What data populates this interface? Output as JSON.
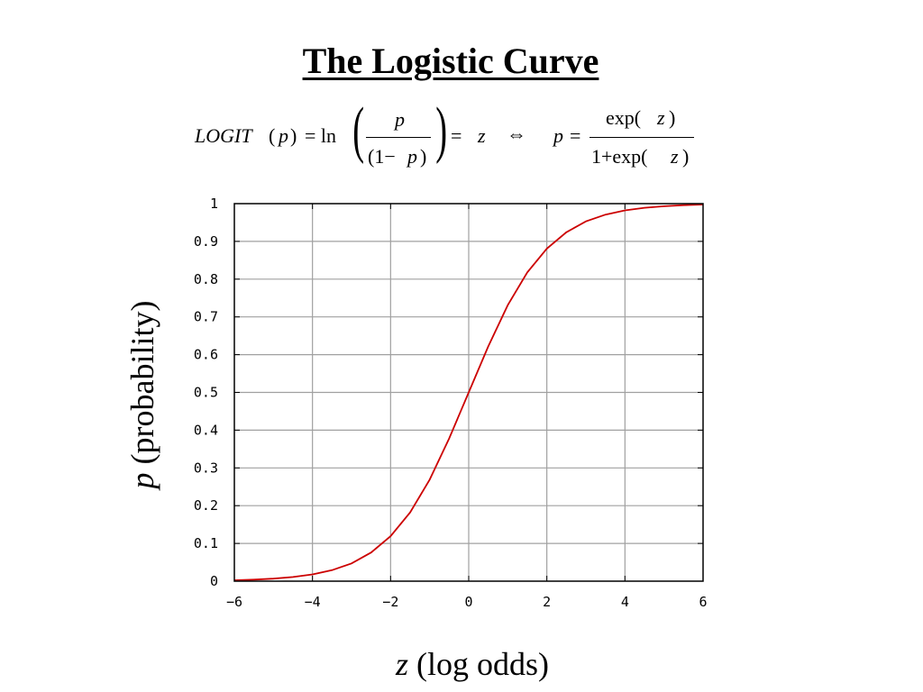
{
  "page": {
    "title": "The Logistic Curve"
  },
  "formula": {
    "lhs_func": "LOGIT",
    "lhs_arg_open": "(",
    "lhs_arg": "p",
    "lhs_arg_close": ")",
    "eq1": "= ln",
    "frac1_num": "p",
    "frac1_den_pre": "(1− ",
    "frac1_den_var": "p",
    "frac1_den_post": ")",
    "eq2": "=",
    "z": "z",
    "iff": "⇔",
    "p": "p",
    "eq3": "=",
    "frac2_num_pre": "exp(",
    "frac2_num_var": "z",
    "frac2_num_post": ")",
    "frac2_den_pre": "1+exp(",
    "frac2_den_var": "z",
    "frac2_den_post": ")"
  },
  "axes": {
    "ylabel_var": "p",
    "ylabel_rest": " (probability)",
    "xlabel_var": "z",
    "xlabel_rest": " (log odds)"
  },
  "colors": {
    "curve": "#cc0000",
    "grid": "#a0a0a0",
    "frame": "#000000"
  },
  "chart_data": {
    "type": "line",
    "title": "The Logistic Curve",
    "xlabel": "z (log odds)",
    "ylabel": "p (probability)",
    "xlim": [
      -6,
      6
    ],
    "ylim": [
      0,
      1
    ],
    "xticks": [
      -6,
      -4,
      -2,
      0,
      2,
      4,
      6
    ],
    "xtick_labels": [
      "−6",
      "−4",
      "−2",
      "0",
      "2",
      "4",
      "6"
    ],
    "yticks": [
      0,
      0.1,
      0.2,
      0.3,
      0.4,
      0.5,
      0.6,
      0.7,
      0.8,
      0.9,
      1
    ],
    "ytick_labels": [
      "0",
      "0.1",
      "0.2",
      "0.3",
      "0.4",
      "0.5",
      "0.6",
      "0.7",
      "0.8",
      "0.9",
      "1"
    ],
    "grid": true,
    "series": [
      {
        "x": [
          -6,
          -5.5,
          -5,
          -4.5,
          -4,
          -3.5,
          -3,
          -2.5,
          -2,
          -1.5,
          -1,
          -0.5,
          0,
          0.5,
          1,
          1.5,
          2,
          2.5,
          3,
          3.5,
          4,
          4.5,
          5,
          5.5,
          6
        ],
        "y": [
          0.0025,
          0.0041,
          0.0067,
          0.011,
          0.018,
          0.029,
          0.047,
          0.076,
          0.119,
          0.182,
          0.269,
          0.378,
          0.5,
          0.622,
          0.731,
          0.818,
          0.881,
          0.924,
          0.953,
          0.971,
          0.982,
          0.989,
          0.993,
          0.996,
          0.9975
        ]
      }
    ]
  }
}
